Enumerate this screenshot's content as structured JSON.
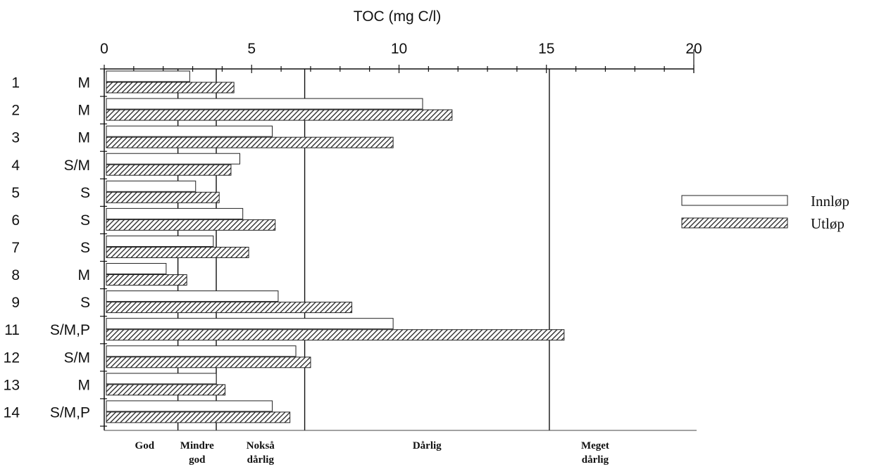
{
  "chart_data": {
    "type": "bar",
    "orientation": "horizontal",
    "title": "TOC (mg C/l)",
    "xlim": [
      0,
      20
    ],
    "xticks": [
      0,
      5,
      10,
      15,
      20
    ],
    "categories": [
      {
        "num": "1",
        "code": "M"
      },
      {
        "num": "2",
        "code": "M"
      },
      {
        "num": "3",
        "code": "M"
      },
      {
        "num": "4",
        "code": "S/M"
      },
      {
        "num": "5",
        "code": "S"
      },
      {
        "num": "6",
        "code": "S"
      },
      {
        "num": "7",
        "code": "S"
      },
      {
        "num": "8",
        "code": "M"
      },
      {
        "num": "9",
        "code": "S"
      },
      {
        "num": "11",
        "code": "S/M,P"
      },
      {
        "num": "12",
        "code": "S/M"
      },
      {
        "num": "13",
        "code": "M"
      },
      {
        "num": "14",
        "code": "S/M,P"
      }
    ],
    "series": [
      {
        "name": "Innløp",
        "pattern": "open",
        "values": [
          2.9,
          10.8,
          5.7,
          4.6,
          3.1,
          4.7,
          3.7,
          2.1,
          5.9,
          9.8,
          6.5,
          3.8,
          5.7
        ]
      },
      {
        "name": "Utløp",
        "pattern": "hatched",
        "values": [
          4.4,
          11.8,
          9.8,
          4.3,
          3.9,
          5.8,
          4.9,
          2.8,
          8.4,
          15.6,
          7.0,
          4.1,
          6.3
        ]
      }
    ],
    "thresholds": [
      2.5,
      3.8,
      6.8,
      15.1
    ],
    "classes": [
      {
        "lines": [
          "God"
        ]
      },
      {
        "lines": [
          "Mindre",
          "god"
        ]
      },
      {
        "lines": [
          "Nokså",
          "dårlig"
        ]
      },
      {
        "lines": [
          "Dårlig"
        ]
      },
      {
        "lines": [
          "Meget",
          "dårlig"
        ]
      }
    ],
    "legend_position": "right"
  }
}
